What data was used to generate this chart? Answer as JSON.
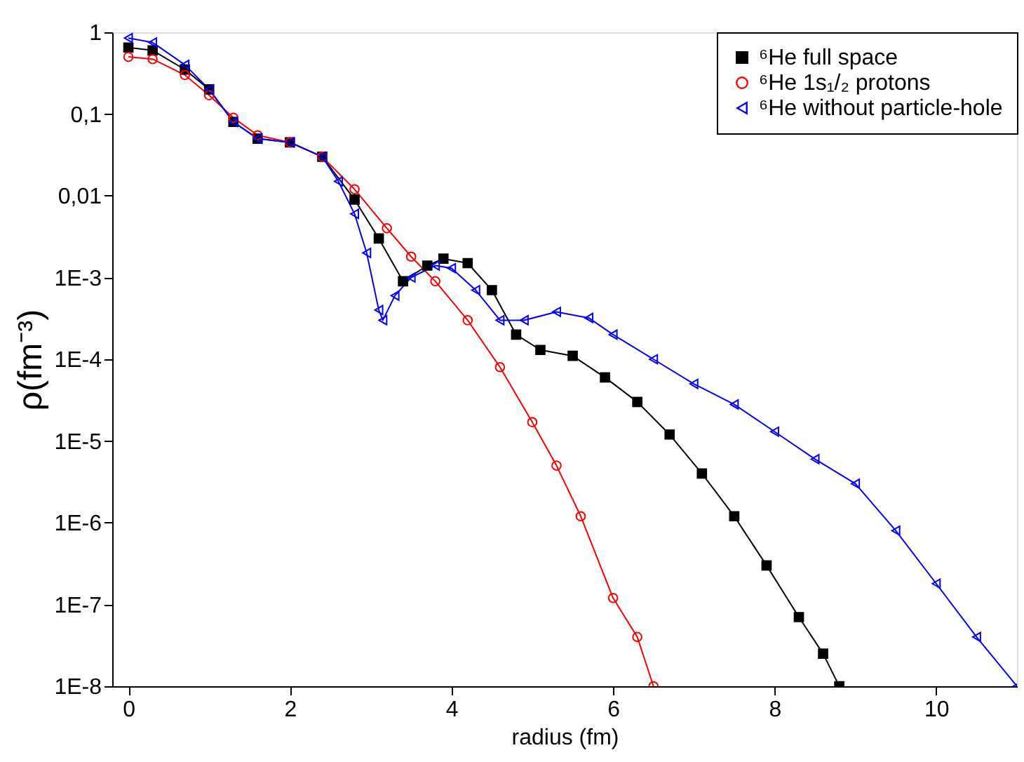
{
  "chart_data": {
    "type": "line",
    "xlabel": "radius (fm)",
    "ylabel": "ρ(fm⁻³)",
    "log": "y",
    "legend": "top right",
    "grid": false,
    "xlim": [
      -0.2,
      11
    ],
    "xticks": [
      0,
      2,
      4,
      6,
      8,
      10
    ],
    "ylim": [
      1e-08,
      1
    ],
    "yticks": [
      1,
      {
        "value": 0.1,
        "label": "0,1"
      },
      {
        "value": 0.01,
        "label": "0,01"
      },
      {
        "value": 0.001,
        "label": "1E-3"
      },
      {
        "value": 0.0001,
        "label": "1E-4"
      },
      {
        "value": 1e-05,
        "label": "1E-5"
      },
      {
        "value": 1e-06,
        "label": "1E-6"
      },
      {
        "value": 1e-07,
        "label": "1E-7"
      },
      {
        "value": 1e-08,
        "label": "1E-8"
      }
    ],
    "series": [
      {
        "name": "⁶He full space",
        "color": "#000000",
        "marker": "square",
        "x": [
          0,
          0.3,
          0.7,
          1.0,
          1.3,
          1.6,
          2.0,
          2.4,
          2.8,
          3.1,
          3.4,
          3.7,
          3.9,
          4.2,
          4.5,
          4.8,
          5.1,
          5.5,
          5.9,
          6.3,
          6.7,
          7.1,
          7.5,
          7.9,
          8.3,
          8.6,
          8.8
        ],
        "values": [
          0.65,
          0.6,
          0.35,
          0.2,
          0.08,
          0.05,
          0.045,
          0.03,
          0.009,
          0.003,
          0.0009,
          0.0014,
          0.0017,
          0.0015,
          0.0007,
          0.0002,
          0.00013,
          0.00011,
          6e-05,
          3e-05,
          1.2e-05,
          4e-06,
          1.2e-06,
          3e-07,
          7e-08,
          2.5e-08,
          1e-08
        ]
      },
      {
        "name": "⁶He 1s₁/₂ protons",
        "color": "#ff0000",
        "marker": "circle",
        "x": [
          0,
          0.3,
          0.7,
          1.0,
          1.3,
          1.6,
          2.0,
          2.4,
          2.8,
          3.2,
          3.5,
          3.8,
          4.2,
          4.6,
          5.0,
          5.3,
          5.6,
          6.0,
          6.3,
          6.5
        ],
        "values": [
          0.5,
          0.47,
          0.3,
          0.17,
          0.09,
          0.055,
          0.045,
          0.03,
          0.012,
          0.004,
          0.0018,
          0.0009,
          0.0003,
          8e-05,
          1.7e-05,
          5e-06,
          1.2e-06,
          1.2e-07,
          4e-08,
          1e-08
        ]
      },
      {
        "name": "⁶He without particle-hole",
        "color": "#0000ff",
        "marker": "triangle-left",
        "x": [
          0,
          0.3,
          0.7,
          1.0,
          1.3,
          1.6,
          2.0,
          2.4,
          2.6,
          2.8,
          2.95,
          3.1,
          3.15,
          3.3,
          3.5,
          3.8,
          4.0,
          4.3,
          4.6,
          4.9,
          5.3,
          5.7,
          6.0,
          6.5,
          7.0,
          7.5,
          8.0,
          8.5,
          9.0,
          9.5,
          10.0,
          10.5,
          11.0
        ],
        "values": [
          0.85,
          0.75,
          0.4,
          0.2,
          0.08,
          0.05,
          0.045,
          0.03,
          0.015,
          0.006,
          0.002,
          0.0004,
          0.0003,
          0.0006,
          0.001,
          0.0014,
          0.0013,
          0.0007,
          0.0003,
          0.0003,
          0.00038,
          0.00032,
          0.0002,
          0.0001,
          5e-05,
          2.8e-05,
          1.3e-05,
          6e-06,
          3e-06,
          8e-07,
          1.8e-07,
          4e-08,
          1e-08
        ]
      }
    ]
  }
}
